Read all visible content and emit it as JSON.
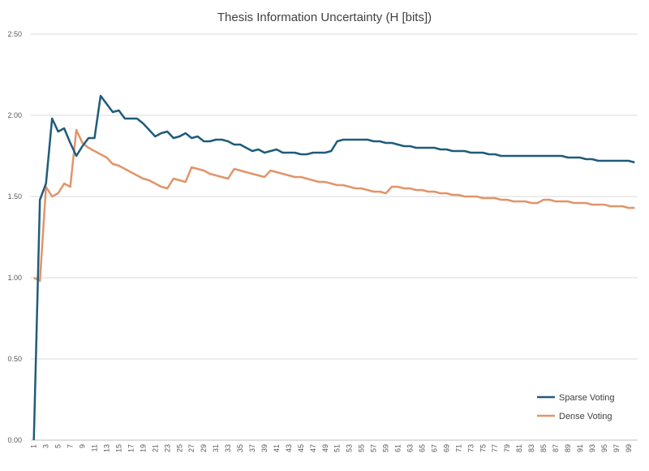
{
  "chart_data": {
    "type": "line",
    "title": "Thesis Information Uncertainty (H [bits])",
    "xlabel": "",
    "ylabel": "",
    "ylim": [
      0,
      2.5
    ],
    "y_ticks": [
      "0.00",
      "0.50",
      "1.00",
      "1.50",
      "2.00",
      "2.50"
    ],
    "x": [
      1,
      2,
      3,
      4,
      5,
      6,
      7,
      8,
      9,
      10,
      11,
      12,
      13,
      14,
      15,
      16,
      17,
      18,
      19,
      20,
      21,
      22,
      23,
      24,
      25,
      26,
      27,
      28,
      29,
      30,
      31,
      32,
      33,
      34,
      35,
      36,
      37,
      38,
      39,
      40,
      41,
      42,
      43,
      44,
      45,
      46,
      47,
      48,
      49,
      50,
      51,
      52,
      53,
      54,
      55,
      56,
      57,
      58,
      59,
      60,
      61,
      62,
      63,
      64,
      65,
      66,
      67,
      68,
      69,
      70,
      71,
      72,
      73,
      74,
      75,
      76,
      77,
      78,
      79,
      80,
      81,
      82,
      83,
      84,
      85,
      86,
      87,
      88,
      89,
      90,
      91,
      92,
      93,
      94,
      95,
      96,
      97,
      98,
      99,
      100
    ],
    "x_tick_labels": [
      "1",
      "3",
      "5",
      "7",
      "9",
      "11",
      "13",
      "15",
      "17",
      "19",
      "21",
      "23",
      "25",
      "27",
      "29",
      "31",
      "33",
      "35",
      "37",
      "39",
      "41",
      "43",
      "45",
      "47",
      "49",
      "51",
      "53",
      "55",
      "57",
      "59",
      "61",
      "63",
      "65",
      "67",
      "69",
      "71",
      "73",
      "75",
      "77",
      "79",
      "81",
      "83",
      "85",
      "87",
      "89",
      "91",
      "93",
      "95",
      "97",
      "99"
    ],
    "grid": true,
    "legend_position": "bottom-right",
    "series": [
      {
        "name": "Sparse Voting",
        "color": "#1f5c7a",
        "values": [
          0.0,
          1.48,
          1.58,
          1.98,
          1.9,
          1.92,
          1.83,
          1.75,
          1.81,
          1.86,
          1.86,
          2.12,
          2.07,
          2.02,
          2.03,
          1.98,
          1.98,
          1.98,
          1.95,
          1.91,
          1.87,
          1.89,
          1.9,
          1.86,
          1.87,
          1.89,
          1.86,
          1.87,
          1.84,
          1.84,
          1.85,
          1.85,
          1.84,
          1.82,
          1.82,
          1.8,
          1.78,
          1.79,
          1.77,
          1.78,
          1.79,
          1.77,
          1.77,
          1.77,
          1.76,
          1.76,
          1.77,
          1.77,
          1.77,
          1.78,
          1.84,
          1.85,
          1.85,
          1.85,
          1.85,
          1.85,
          1.84,
          1.84,
          1.83,
          1.83,
          1.82,
          1.81,
          1.81,
          1.8,
          1.8,
          1.8,
          1.8,
          1.79,
          1.79,
          1.78,
          1.78,
          1.78,
          1.77,
          1.77,
          1.77,
          1.76,
          1.76,
          1.75,
          1.75,
          1.75,
          1.75,
          1.75,
          1.75,
          1.75,
          1.75,
          1.75,
          1.75,
          1.75,
          1.74,
          1.74,
          1.74,
          1.73,
          1.73,
          1.72,
          1.72,
          1.72,
          1.72,
          1.72,
          1.72,
          1.71
        ]
      },
      {
        "name": "Dense Voting",
        "color": "#e0956a",
        "values": [
          1.0,
          0.98,
          1.56,
          1.5,
          1.52,
          1.58,
          1.56,
          1.91,
          1.83,
          1.8,
          1.78,
          1.76,
          1.74,
          1.7,
          1.69,
          1.67,
          1.65,
          1.63,
          1.61,
          1.6,
          1.58,
          1.56,
          1.55,
          1.61,
          1.6,
          1.59,
          1.68,
          1.67,
          1.66,
          1.64,
          1.63,
          1.62,
          1.61,
          1.67,
          1.66,
          1.65,
          1.64,
          1.63,
          1.62,
          1.66,
          1.65,
          1.64,
          1.63,
          1.62,
          1.62,
          1.61,
          1.6,
          1.59,
          1.59,
          1.58,
          1.57,
          1.57,
          1.56,
          1.55,
          1.55,
          1.54,
          1.53,
          1.53,
          1.52,
          1.56,
          1.56,
          1.55,
          1.55,
          1.54,
          1.54,
          1.53,
          1.53,
          1.52,
          1.52,
          1.51,
          1.51,
          1.5,
          1.5,
          1.5,
          1.49,
          1.49,
          1.49,
          1.48,
          1.48,
          1.47,
          1.47,
          1.47,
          1.46,
          1.46,
          1.48,
          1.48,
          1.47,
          1.47,
          1.47,
          1.46,
          1.46,
          1.46,
          1.45,
          1.45,
          1.45,
          1.44,
          1.44,
          1.44,
          1.43,
          1.43
        ]
      }
    ]
  }
}
